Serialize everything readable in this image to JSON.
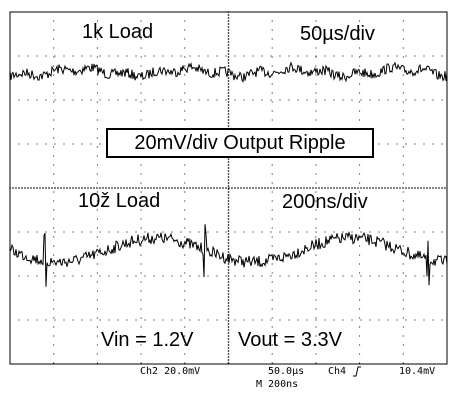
{
  "chart_data": [
    {
      "type": "line",
      "panel": "top",
      "annotations": [
        "1k Load",
        "50µs/div"
      ],
      "series": [
        {
          "values": []
        }
      ],
      "grid": true,
      "xdivisions": 10,
      "ydivisions": 8,
      "note_texture": "noisy ripple, roughly ±6 mV"
    },
    {
      "type": "line",
      "panel": "bottom",
      "annotations": [
        "10ž Load",
        "200ns/div"
      ],
      "series": [
        {
          "values": []
        }
      ],
      "grid": true,
      "xdivisions": 10,
      "ydivisions": 8
    }
  ],
  "labels": {
    "top_left": "1k Load",
    "top_right": "50µs/div",
    "center_box": "20mV/div Output Ripple",
    "bottom_left_panel": "10ž Load",
    "bottom_right_panel": "200ns/div",
    "vin": "Vin = 1.2V",
    "vout": "Vout = 3.3V"
  },
  "readout": {
    "ch2": "Ch2  20.0mV",
    "timebase": "50.0µs",
    "ch4": "Ch4",
    "trigger_icon": "rising-edge-icon",
    "trigger_level": "10.4mV",
    "zoom": "M  200ns"
  },
  "colors": {
    "trace": "#000000",
    "grid": "#000000",
    "background": "#ffffff"
  }
}
